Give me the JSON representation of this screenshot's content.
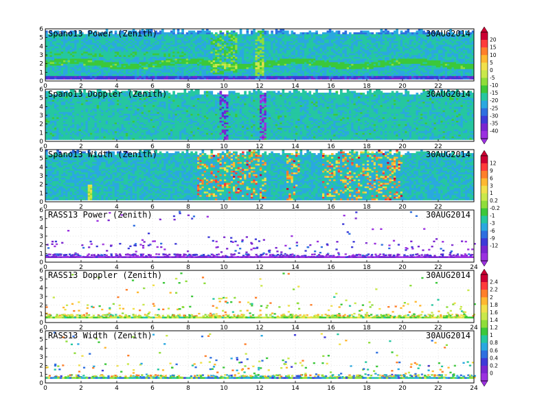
{
  "chart_data": {
    "type": "heatmap",
    "x_range": [
      0,
      24
    ],
    "x_ticks": [
      0,
      2,
      4,
      6,
      8,
      10,
      12,
      14,
      16,
      18,
      20,
      22,
      24
    ],
    "y_range": [
      0,
      6
    ],
    "y_ticks": [
      0,
      1,
      2,
      3,
      4,
      5,
      6
    ],
    "date": "30AUG2014",
    "panels": [
      {
        "title": "Spano13 Power (Zenith)",
        "date": "30AUG2014",
        "colorbar": 0,
        "kind": "dense",
        "variable": "power",
        "x_ticks_shown": [
          0,
          2,
          4,
          6,
          8,
          10,
          12,
          14,
          16,
          18,
          20,
          22
        ],
        "level_min": 0,
        "level_max": 0.77
      },
      {
        "title": "Spano13 Doppler (Zenith)",
        "date": "30AUG2014",
        "colorbar": 0,
        "kind": "dense",
        "variable": "doppler",
        "x_ticks_shown": [
          0,
          2,
          4,
          6,
          8,
          10,
          12,
          14,
          16,
          18,
          20,
          22
        ],
        "level_min": 0,
        "level_max": 0.77
      },
      {
        "title": "Spano13 Width (Zenith)",
        "date": "30AUG2014",
        "colorbar": 1,
        "kind": "dense",
        "variable": "width",
        "x_ticks_shown": [
          0,
          2,
          4,
          6,
          8,
          10,
          12,
          14,
          16,
          18,
          20,
          22
        ],
        "level_min": 0,
        "level_max": 0.9
      },
      {
        "title": "RASS13 Power (Zenith)",
        "date": "30AUG2014",
        "colorbar": 1,
        "kind": "sparse",
        "variable": "rass_power",
        "x_ticks_shown": [
          0,
          2,
          4,
          6,
          8,
          10,
          12,
          14,
          16,
          18,
          20,
          22,
          24
        ],
        "level_min": 0,
        "level_max": 0.25
      },
      {
        "title": "RASS13 Doppler (Zenith)",
        "date": "30AUG2014",
        "colorbar": 2,
        "kind": "sparse",
        "variable": "rass_doppler",
        "x_ticks_shown": [
          0,
          2,
          4,
          6,
          8,
          10,
          12,
          14,
          16,
          18,
          20,
          22,
          24
        ],
        "level_min": 0.4,
        "level_max": 0.85
      },
      {
        "title": "RASS13 Width (Zenith)",
        "date": "30AUG2014",
        "colorbar": 2,
        "kind": "sparse",
        "variable": "rass_width",
        "x_ticks_shown": [
          0,
          2,
          4,
          6,
          8,
          10,
          12,
          14,
          16,
          18,
          20,
          22,
          24
        ],
        "level_min": 0.2,
        "level_max": 0.85
      }
    ],
    "colorbars": [
      {
        "labels": [
          "20",
          "15",
          "10",
          "5",
          "0",
          "-5",
          "-10",
          "-15",
          "-20",
          "-25",
          "-30",
          "-35",
          "-40"
        ],
        "colors": [
          "#cc0033",
          "#ff3b3b",
          "#ff7f2a",
          "#ffb830",
          "#f1e04a",
          "#c9e84a",
          "#8fdd3a",
          "#3cc83a",
          "#25c7a0",
          "#2aa8e0",
          "#2e6fe0",
          "#3e3ad8",
          "#7a25d0",
          "#9b30e0"
        ]
      },
      {
        "labels": [
          "12",
          "9",
          "6",
          "3",
          "1",
          "0.2",
          "-0.2",
          "-1",
          "-3",
          "-6",
          "-9",
          "-12"
        ],
        "colors": [
          "#cc0033",
          "#ff3b3b",
          "#ff7f2a",
          "#ffb830",
          "#f1e04a",
          "#c9e84a",
          "#8fdd3a",
          "#3cc83a",
          "#25c7a0",
          "#2aa8e0",
          "#2e6fe0",
          "#3e3ad8",
          "#7a25d0",
          "#9b30e0"
        ]
      },
      {
        "labels": [
          "2.4",
          "2.2",
          "2",
          "1.8",
          "1.6",
          "1.4",
          "1.2",
          "1",
          "0.8",
          "0.6",
          "0.4",
          "0.2",
          "0"
        ],
        "colors": [
          "#cc0033",
          "#ff3b3b",
          "#ff7f2a",
          "#ffb830",
          "#f1e04a",
          "#c9e84a",
          "#8fdd3a",
          "#3cc83a",
          "#25c7a0",
          "#2aa8e0",
          "#2e6fe0",
          "#3e3ad8",
          "#7a25d0",
          "#9b30e0"
        ]
      }
    ]
  }
}
